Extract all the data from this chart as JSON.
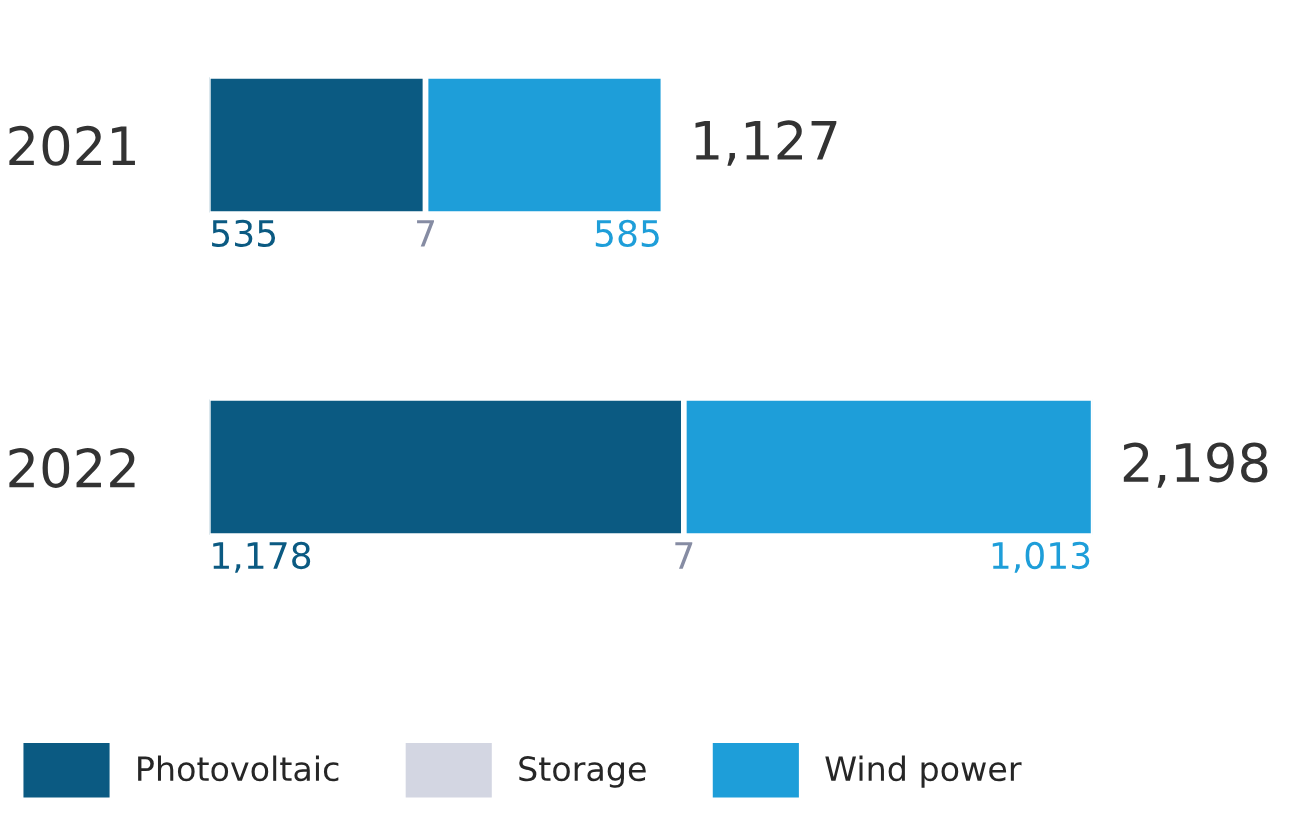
{
  "chart_data": {
    "type": "bar",
    "orientation": "horizontal",
    "stacked": true,
    "categories": [
      "2021",
      "2022"
    ],
    "series": [
      {
        "name": "Photovoltaic",
        "color": "#0b5a82",
        "values": [
          535,
          1178
        ],
        "value_labels": [
          "535",
          "1,178"
        ]
      },
      {
        "name": "Storage",
        "color": "#d3d6e2",
        "values": [
          7,
          7
        ],
        "value_labels": [
          "7",
          "7"
        ]
      },
      {
        "name": "Wind power",
        "color": "#1e9ed9",
        "values": [
          585,
          1013
        ],
        "value_labels": [
          "585",
          "1,013"
        ]
      }
    ],
    "totals": [
      "1,127",
      "2,198"
    ],
    "legend": "bottom"
  }
}
